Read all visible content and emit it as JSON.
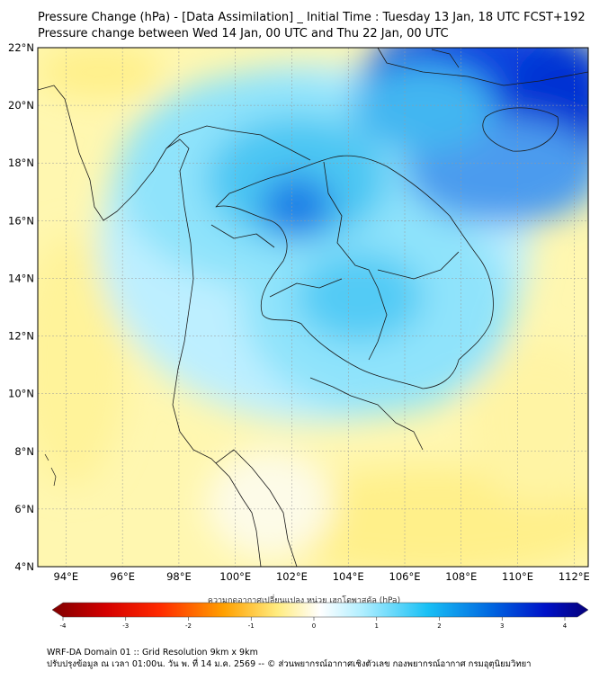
{
  "header": {
    "title_line1": "Pressure Change (hPa) - [Data Assimilation] _ Initial Time : Tuesday 13 Jan, 18 UTC FCST+192",
    "title_line2": "Pressure change between Wed 14 Jan, 00 UTC and Thu 22 Jan, 00 UTC"
  },
  "map": {
    "lat_labels": [
      "22°N",
      "20°N",
      "18°N",
      "16°N",
      "14°N",
      "12°N",
      "10°N",
      "8°N",
      "6°N",
      "4°N"
    ],
    "lon_labels": [
      "94°E",
      "96°E",
      "98°E",
      "100°E",
      "102°E",
      "104°E",
      "106°E",
      "108°E",
      "110°E",
      "112°E"
    ],
    "lat_range": [
      4,
      22
    ],
    "lon_range": [
      93,
      112.5
    ],
    "field": "Pressure change (hPa)"
  },
  "colorbar": {
    "label": "ความกดอากาศเปลี่ยนแปลง หน่วย เฮกโตพาสคัล (hPa)",
    "ticks": [
      "-4",
      "-3",
      "-2",
      "-1",
      "0",
      "1",
      "2",
      "3",
      "4"
    ],
    "min": -4,
    "max": 4,
    "colors": {
      "neg_extreme": "#7f0000",
      "neg_strong": "#ff2a00",
      "neg_mid": "#ffa000",
      "neg_weak": "#ffec80",
      "zero": "#ffffff",
      "pos_weak": "#aeeeff",
      "pos_mid": "#19c0f5",
      "pos_strong": "#0066e0",
      "pos_extreme": "#06007a"
    }
  },
  "footer": {
    "line1": "WRF-DA Domain 01 :: Grid Resolution 9km x 9km",
    "line2": "ปรับปรุงข้อมูล ณ เวลา 01:00น. วัน พ. ที่ 14 ม.ค. 2569 -- © ส่วนพยากรณ์อากาศเชิงตัวเลข กองพยากรณ์อากาศ กรมอุตุนิยมวิทยา"
  }
}
